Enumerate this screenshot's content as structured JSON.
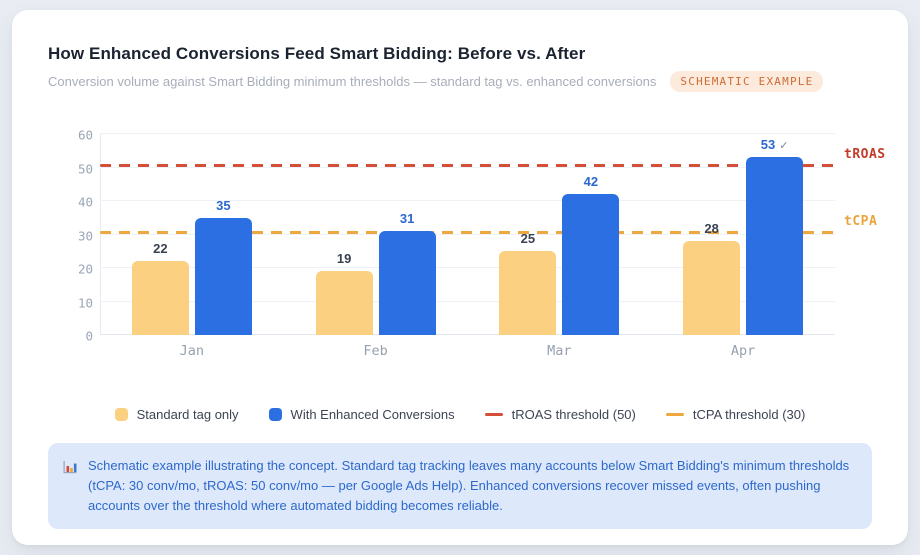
{
  "header": {
    "title": "How Enhanced Conversions Feed Smart Bidding: Before vs. After",
    "subtitle": "Conversion volume against Smart Bidding minimum thresholds — standard tag vs. enhanced conversions",
    "badge": "SCHEMATIC EXAMPLE"
  },
  "chart_data": {
    "type": "bar",
    "categories": [
      "Jan",
      "Feb",
      "Mar",
      "Apr"
    ],
    "series": [
      {
        "name": "Standard tag only",
        "color": "#fbd080",
        "label_color": "#3a4252",
        "values": [
          22,
          19,
          25,
          28
        ]
      },
      {
        "name": "With Enhanced Conversions",
        "color": "#2c6fe2",
        "label_color": "#2d68ce",
        "values": [
          35,
          31,
          42,
          53
        ]
      }
    ],
    "annotations": [
      {
        "series": 1,
        "index": 3,
        "text": "✓"
      }
    ],
    "thresholds": [
      {
        "label": "tROAS",
        "legend_label": "tROAS threshold (50)",
        "value": 50,
        "line_color": "#d44f38",
        "text_color": "#c13c2a"
      },
      {
        "label": "tCPA",
        "legend_label": "tCPA threshold (30)",
        "value": 30,
        "line_color": "#eda93f",
        "text_color": "#e9a43c"
      }
    ],
    "ylim": [
      0,
      60
    ],
    "yticks": [
      0,
      10,
      20,
      30,
      40,
      50,
      60
    ],
    "grid": true,
    "legend_position": "bottom",
    "title": "How Enhanced Conversions Feed Smart Bidding: Before vs. After",
    "xlabel": "",
    "ylabel": ""
  },
  "footnote": {
    "icon": "bar-chart-icon",
    "text": "Schematic example illustrating the concept. Standard tag tracking leaves many accounts below Smart Bidding's minimum thresholds (tCPA: 30 conv/mo, tROAS: 50 conv/mo — per Google Ads Help). Enhanced conversions recover missed events, often pushing accounts over the threshold where automated bidding becomes reliable."
  }
}
